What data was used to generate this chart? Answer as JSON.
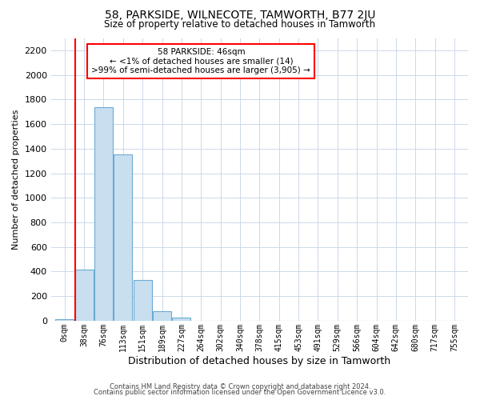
{
  "title": "58, PARKSIDE, WILNECOTE, TAMWORTH, B77 2JU",
  "subtitle": "Size of property relative to detached houses in Tamworth",
  "xlabel": "Distribution of detached houses by size in Tamworth",
  "ylabel": "Number of detached properties",
  "bar_labels": [
    "0sqm",
    "38sqm",
    "76sqm",
    "113sqm",
    "151sqm",
    "189sqm",
    "227sqm",
    "264sqm",
    "302sqm",
    "340sqm",
    "378sqm",
    "415sqm",
    "453sqm",
    "491sqm",
    "529sqm",
    "566sqm",
    "604sqm",
    "642sqm",
    "680sqm",
    "717sqm",
    "755sqm"
  ],
  "bar_values": [
    15,
    415,
    1740,
    1350,
    330,
    75,
    25,
    0,
    0,
    0,
    0,
    0,
    0,
    0,
    0,
    0,
    0,
    0,
    0,
    0,
    0
  ],
  "bar_fill_color": "#c8dff0",
  "bar_edge_color": "#6aaad4",
  "red_line_bar_index": 1,
  "ylim": [
    0,
    2300
  ],
  "yticks": [
    0,
    200,
    400,
    600,
    800,
    1000,
    1200,
    1400,
    1600,
    1800,
    2000,
    2200
  ],
  "annotation_box": {
    "line1": "58 PARKSIDE: 46sqm",
    "line2": "← <1% of detached houses are smaller (14)",
    "line3": ">99% of semi-detached houses are larger (3,905) →"
  },
  "footer_line1": "Contains HM Land Registry data © Crown copyright and database right 2024.",
  "footer_line2": "Contains public sector information licensed under the Open Government Licence v3.0.",
  "background_color": "#ffffff",
  "grid_color": "#ccd8e8"
}
